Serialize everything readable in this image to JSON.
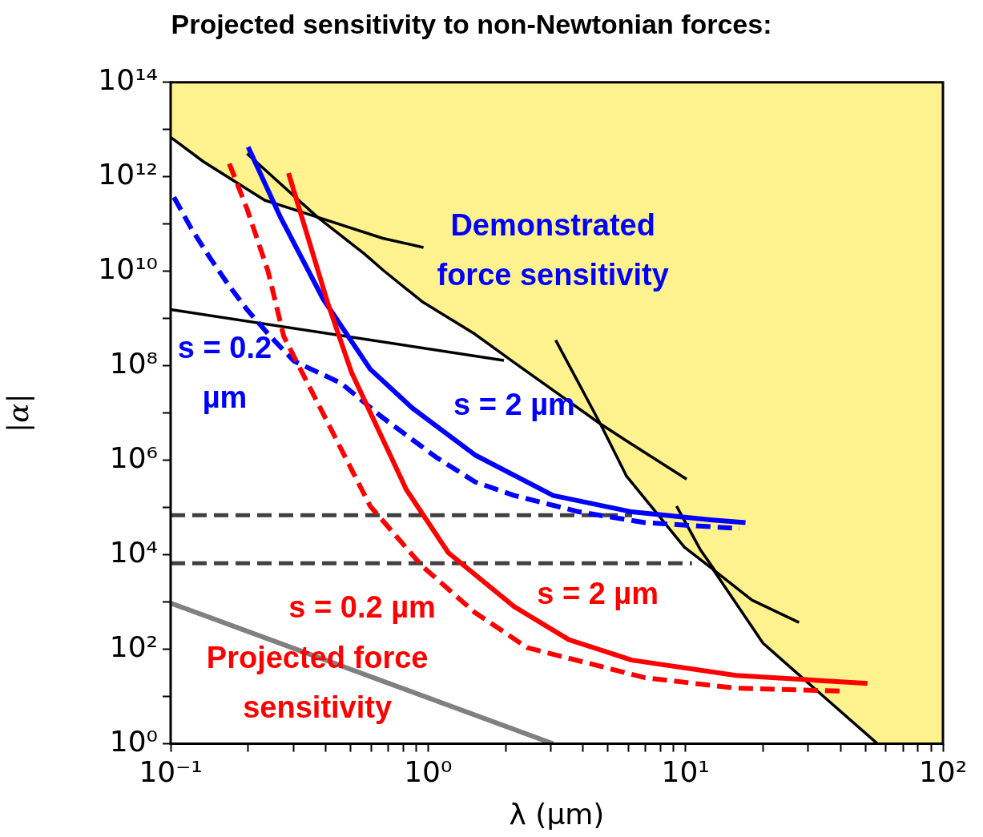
{
  "chart_data": {
    "type": "line",
    "title": "Projected sensitivity to non-Newtonian forces:",
    "xlabel": "λ (μm)",
    "ylabel": "|α|",
    "log": "xy",
    "grid": false,
    "legend": false,
    "xlim": [
      0.1,
      100
    ],
    "ylim": [
      1,
      100000000000000.0
    ],
    "xticks": [
      {
        "value": 0.1,
        "label": "10⁻¹"
      },
      {
        "value": 0.2,
        "label": null
      },
      {
        "value": 0.3,
        "label": null
      },
      {
        "value": 0.4,
        "label": null
      },
      {
        "value": 0.5,
        "label": null
      },
      {
        "value": 0.6,
        "label": null
      },
      {
        "value": 0.7,
        "label": null
      },
      {
        "value": 0.8,
        "label": null
      },
      {
        "value": 0.9,
        "label": null
      },
      {
        "value": 1,
        "label": "10⁰"
      },
      {
        "value": 2,
        "label": null
      },
      {
        "value": 3,
        "label": null
      },
      {
        "value": 4,
        "label": null
      },
      {
        "value": 5,
        "label": null
      },
      {
        "value": 6,
        "label": null
      },
      {
        "value": 7,
        "label": null
      },
      {
        "value": 8,
        "label": null
      },
      {
        "value": 9,
        "label": null
      },
      {
        "value": 10,
        "label": "10¹"
      },
      {
        "value": 20,
        "label": null
      },
      {
        "value": 30,
        "label": null
      },
      {
        "value": 40,
        "label": null
      },
      {
        "value": 50,
        "label": null
      },
      {
        "value": 60,
        "label": null
      },
      {
        "value": 70,
        "label": null
      },
      {
        "value": 80,
        "label": null
      },
      {
        "value": 90,
        "label": null
      },
      {
        "value": 100,
        "label": "10²"
      }
    ],
    "yticks": [
      {
        "value": 1,
        "label": "10⁰"
      },
      {
        "value": 10,
        "label": null
      },
      {
        "value": 100,
        "label": "10²"
      },
      {
        "value": 1000,
        "label": null
      },
      {
        "value": 10000,
        "label": "10⁴"
      },
      {
        "value": 100000,
        "label": null
      },
      {
        "value": 1000000,
        "label": "10⁶"
      },
      {
        "value": 10000000,
        "label": null
      },
      {
        "value": 100000000,
        "label": "10⁸"
      },
      {
        "value": 1000000000,
        "label": null
      },
      {
        "value": 10000000000,
        "label": "10¹⁰"
      },
      {
        "value": 100000000000,
        "label": null
      },
      {
        "value": 1000000000000,
        "label": "10¹²"
      },
      {
        "value": 10000000000000,
        "label": null
      },
      {
        "value": 100000000000000,
        "label": "10¹⁴"
      }
    ],
    "series": [
      {
        "type": "area",
        "color": "#fef28e",
        "x": [
          0.1,
          0.1,
          0.134,
          0.232,
          0.372,
          0.568,
          0.667,
          0.947,
          2.16,
          4.67,
          5.89,
          9.9,
          12.8,
          20,
          28.4,
          55.7,
          100,
          100
        ],
        "values": [
          100000000000000.0,
          6900000000000.0,
          2100000000000.0,
          320000000000.0,
          140000000000.0,
          23000000000.0,
          10700000000.0,
          2300000000.0,
          117000000.0,
          5900000.0,
          470000.0,
          14500.0,
          4900.0,
          135,
          25,
          1,
          1,
          100000000000000.0
        ]
      },
      {
        "type": "line",
        "color": "#808080",
        "x": [
          0.1,
          3.06
        ],
        "values": [
          950,
          1
        ]
      },
      {
        "type": "line",
        "color": "#000000",
        "x": [
          0.1,
          0.134,
          0.232,
          0.372,
          0.568,
          0.667,
          0.947,
          1.52,
          2.16,
          4.67,
          5.89,
          10.1
        ],
        "values": [
          6900000000000.0,
          2100000000000.0,
          320000000000.0,
          140000000000.0,
          23000000000.0,
          10700000000.0,
          2300000000.0,
          470000000.0,
          117000000.0,
          5900000.0,
          2600000.0,
          400000.0
        ]
      },
      {
        "type": "line",
        "color": "#000000",
        "x": [
          0.198,
          0.372,
          0.667,
          0.96
        ],
        "values": [
          3100000000000.0,
          140000000000.0,
          50000000000.0,
          32000000000.0
        ]
      },
      {
        "type": "line",
        "color": "#000000",
        "x": [
          0.1,
          1.97
        ],
        "values": [
          1550000000.0,
          130000000.0
        ]
      },
      {
        "type": "line",
        "color": "#000000",
        "x": [
          3.13,
          4.67,
          5.89,
          9.9,
          12.8,
          20,
          28.4,
          55.7
        ],
        "values": [
          350000000.0,
          5900000.0,
          470000.0,
          14500.0,
          4900.0,
          135,
          25,
          1
        ]
      },
      {
        "type": "line",
        "color": "#000000",
        "x": [
          9.23,
          11.4,
          13.1,
          18.1,
          27.6
        ],
        "values": [
          107000.0,
          13000.0,
          4400.0,
          1100.0,
          370
        ]
      },
      {
        "type": "line",
        "color": "#404040",
        "line_style": "dashed",
        "x": [
          0.1,
          6.2
        ],
        "values": [
          69000.0,
          69000.0
        ]
      },
      {
        "type": "line",
        "color": "#404040",
        "line_style": "dashed",
        "x": [
          0.1,
          10.6
        ],
        "values": [
          6600.0,
          6600.0
        ]
      },
      {
        "type": "line",
        "color": "#0000ff",
        "line_style": "dashed",
        "x": [
          0.103,
          0.121,
          0.142,
          0.168,
          0.198,
          0.244,
          0.301,
          0.459,
          0.653,
          1.07,
          1.52,
          2.16,
          3.86,
          6.97,
          16.2
        ],
        "values": [
          370000000000.0,
          76000000000.0,
          19500000000.0,
          5100000000.0,
          1550000000.0,
          420000000.0,
          126000000.0,
          43000000.0,
          8700000.0,
          1180000.0,
          350000.0,
          180000.0,
          81000.0,
          48000.0,
          36000.0
        ]
      },
      {
        "type": "line",
        "color": "#0000ff",
        "x": [
          0.2,
          0.267,
          0.391,
          0.596,
          0.865,
          1.52,
          3.06,
          6.18,
          12.5,
          17.1
        ],
        "values": [
          4300000000000.0,
          140000000000.0,
          2600000000.0,
          85000000.0,
          13000000.0,
          1300000.0,
          180000.0,
          81000.0,
          55000.0,
          48000.0
        ]
      },
      {
        "type": "line",
        "color": "#ff0000",
        "line_style": "dashed",
        "x": [
          0.169,
          0.198,
          0.239,
          0.275,
          0.596,
          0.947,
          1.52,
          2.43,
          6.97,
          15.7,
          41.2
        ],
        "values": [
          1900000000000.0,
          210000000000.0,
          10000000000.0,
          420000000.0,
          107000.0,
          5800.0,
          600,
          108,
          25,
          15,
          13
        ]
      },
      {
        "type": "line",
        "color": "#ff0000",
        "x": [
          0.287,
          0.408,
          0.504,
          0.823,
          1.2,
          2.16,
          3.52,
          6.18,
          15.7,
          50.9
        ],
        "values": [
          1200000000000.0,
          2100000000.0,
          73000000.0,
          240000.0,
          11000.0,
          800,
          160,
          59,
          28,
          19
        ]
      }
    ],
    "annotations": [
      "Demonstrated\nforce sensitivity",
      "s = 0.2\nµm",
      "s = 2 µm",
      "s = 0.2 µm",
      "s = 2 µm",
      "Projected force\nsensitivity"
    ]
  }
}
